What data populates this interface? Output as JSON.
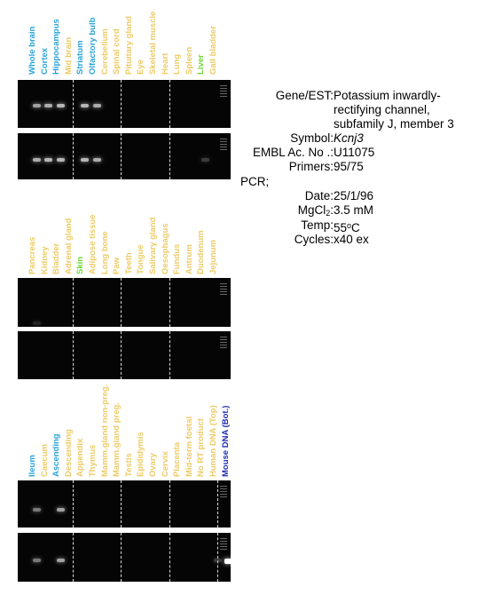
{
  "panel1": {
    "labels": [
      {
        "text": "Whole brain",
        "color": "blue"
      },
      {
        "text": "Cortex",
        "color": "blue"
      },
      {
        "text": "Hippocampus",
        "color": "blue"
      },
      {
        "text": "Mid brain",
        "color": "yellow"
      },
      {
        "text": "Striatum",
        "color": "blue"
      },
      {
        "text": "Olfactory bulb",
        "color": "blue"
      },
      {
        "text": "Cerebellum",
        "color": "yellow"
      },
      {
        "text": "Spinal cord",
        "color": "yellow"
      },
      {
        "text": "Pituitary gland",
        "color": "yellow"
      },
      {
        "text": "Eye",
        "color": "yellow"
      },
      {
        "text": "Skeletal muscle",
        "color": "yellow"
      },
      {
        "text": "Heart",
        "color": "yellow"
      },
      {
        "text": "Lung",
        "color": "yellow"
      },
      {
        "text": "Spleen",
        "color": "yellow"
      },
      {
        "text": "Liver",
        "color": "green"
      },
      {
        "text": "Gall bladder",
        "color": "yellow"
      }
    ],
    "gel_top_bands": [
      0.75,
      0.8,
      0.85,
      0,
      0.85,
      0.8,
      0,
      0,
      0,
      0,
      0,
      0,
      0,
      0,
      0,
      0
    ],
    "gel_bottom_bands": [
      0.8,
      0.85,
      0.85,
      0,
      0.85,
      0.8,
      0,
      0,
      0,
      0,
      0,
      0,
      0,
      0,
      0.25,
      0
    ]
  },
  "panel2": {
    "labels": [
      {
        "text": "Pancreas",
        "color": "yellow"
      },
      {
        "text": "Kidney",
        "color": "yellow"
      },
      {
        "text": "Bladder",
        "color": "yellow"
      },
      {
        "text": "Adrenal gland",
        "color": "yellow"
      },
      {
        "text": "Skin",
        "color": "green"
      },
      {
        "text": "Adipose tissue",
        "color": "yellow"
      },
      {
        "text": "Long bone",
        "color": "yellow"
      },
      {
        "text": "Paw",
        "color": "yellow"
      },
      {
        "text": "Teeth",
        "color": "yellow"
      },
      {
        "text": "Tongue",
        "color": "yellow"
      },
      {
        "text": "Salivary gland",
        "color": "yellow"
      },
      {
        "text": "Oesophagus",
        "color": "yellow"
      },
      {
        "text": "Fundus",
        "color": "yellow"
      },
      {
        "text": "Antrum",
        "color": "yellow"
      },
      {
        "text": "Duodenum",
        "color": "yellow"
      },
      {
        "text": "Jejunum",
        "color": "yellow"
      }
    ],
    "gel_top_bands": [
      0.12,
      0,
      0,
      0,
      0,
      0,
      0,
      0,
      0,
      0,
      0,
      0,
      0,
      0,
      0,
      0
    ],
    "gel_bottom_bands": [
      0,
      0,
      0,
      0,
      0,
      0,
      0,
      0,
      0,
      0,
      0,
      0,
      0,
      0,
      0,
      0
    ]
  },
  "panel3": {
    "labels": [
      {
        "text": "Ileum",
        "color": "blue"
      },
      {
        "text": "Caecum",
        "color": "yellow"
      },
      {
        "text": "Ascending",
        "color": "blue"
      },
      {
        "text": "Descending",
        "color": "yellow"
      },
      {
        "text": "Appendix",
        "color": "yellow"
      },
      {
        "text": "Thymus",
        "color": "yellow"
      },
      {
        "text": "Mamm.gland non-preg.",
        "color": "yellow"
      },
      {
        "text": "Mamm.gland preg.",
        "color": "yellow"
      },
      {
        "text": "Testis",
        "color": "yellow"
      },
      {
        "text": "Epididymis",
        "color": "yellow"
      },
      {
        "text": "Ovary",
        "color": "yellow"
      },
      {
        "text": "Cervix",
        "color": "yellow"
      },
      {
        "text": "Placenta",
        "color": "yellow"
      },
      {
        "text": "Mid-term foetal",
        "color": "yellow"
      },
      {
        "text": "No RT product",
        "color": "yellow"
      },
      {
        "text": "Human DNA (Top)",
        "color": "yellow"
      },
      {
        "text": "Mouse DNA (Bot.)",
        "color": "navy"
      }
    ],
    "gel_top_bands": [
      0.55,
      0,
      0.75,
      0,
      0,
      0,
      0,
      0,
      0,
      0,
      0,
      0,
      0,
      0,
      0,
      0,
      0
    ],
    "gel_bottom_bands": [
      0.55,
      0,
      0.75,
      0,
      0,
      0,
      0,
      0,
      0,
      0,
      0,
      0,
      0,
      0,
      0,
      0.25,
      1.0
    ]
  },
  "info": {
    "gene_key": "Gene/EST:",
    "gene_lines": [
      "Potassium inwardly-",
      "rectifying channel,",
      "subfamily J, member 3"
    ],
    "symbol_key": "Symbol:",
    "symbol": "Kcnj3",
    "embl_key": "EMBL Ac. No .:",
    "embl": "U11075",
    "primers_key": "Primers:",
    "primers": "95/75",
    "pcr_key": "PCR;",
    "date_key": "Date:",
    "date": "25/1/96",
    "mgcl_key_main": "MgCl",
    "mgcl_key_sub": "2",
    "mgcl": "3.5 mM",
    "temp_key": "Temp:",
    "temp_main": "55",
    "temp_sup": "o",
    "temp_unit": "C",
    "cycles_key": "Cycles:",
    "cycles": "x40 ex"
  },
  "colors": {
    "blue": "#2aa3d8",
    "yellow": "#eecb66",
    "green": "#72d83a",
    "navy": "#1d2db0"
  }
}
